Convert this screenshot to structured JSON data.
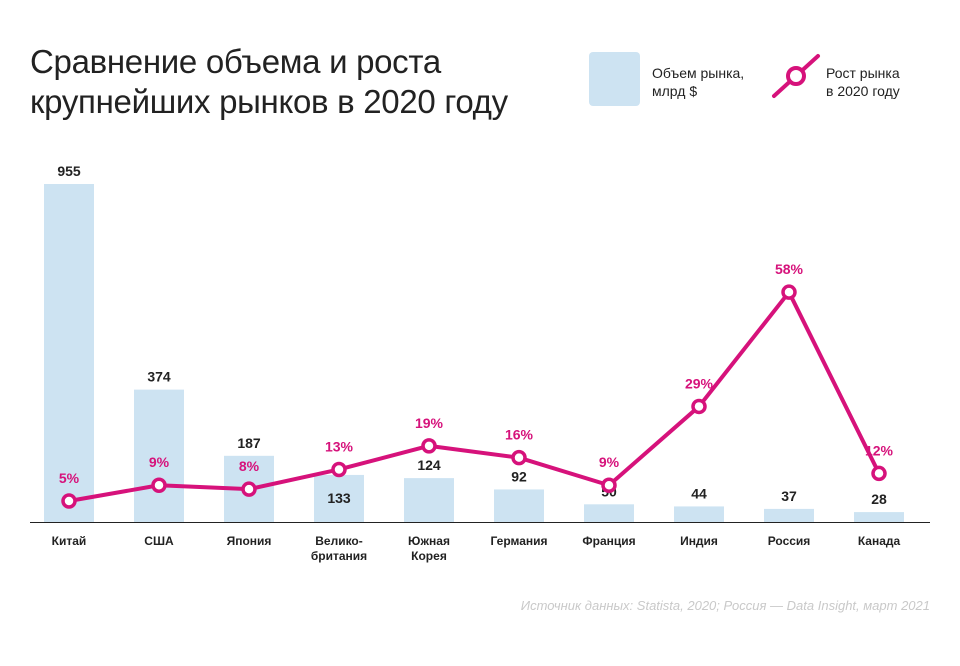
{
  "title_line1": "Сравнение объема и роста",
  "title_line2": "крупнейших рынков в 2020 году",
  "legend": {
    "volume_line1": "Объем рынка,",
    "volume_line2": "млрд $",
    "growth_line1": "Рост рынка",
    "growth_line2": "в 2020 году"
  },
  "source": "Источник данных: Statista, 2020; Россия — Data Insight, март 2021",
  "colors": {
    "bar": "#cde3f2",
    "line": "#d6127b",
    "label": "#222222"
  },
  "chart_data": {
    "type": "bar",
    "categories": [
      [
        "Китай"
      ],
      [
        "США"
      ],
      [
        "Япония"
      ],
      [
        "Велико-",
        "британия"
      ],
      [
        "Южная",
        "Корея"
      ],
      [
        "Германия"
      ],
      [
        "Франция"
      ],
      [
        "Индия"
      ],
      [
        "Россия"
      ],
      [
        "Канада"
      ]
    ],
    "series": [
      {
        "name": "Объем рынка, млрд $",
        "type": "bar",
        "values": [
          955,
          374,
          187,
          133,
          124,
          92,
          50,
          44,
          37,
          28
        ]
      },
      {
        "name": "Рост рынка в 2020 году",
        "type": "line",
        "unit": "%",
        "values": [
          5,
          9,
          8,
          13,
          19,
          16,
          9,
          29,
          58,
          12
        ]
      }
    ]
  }
}
